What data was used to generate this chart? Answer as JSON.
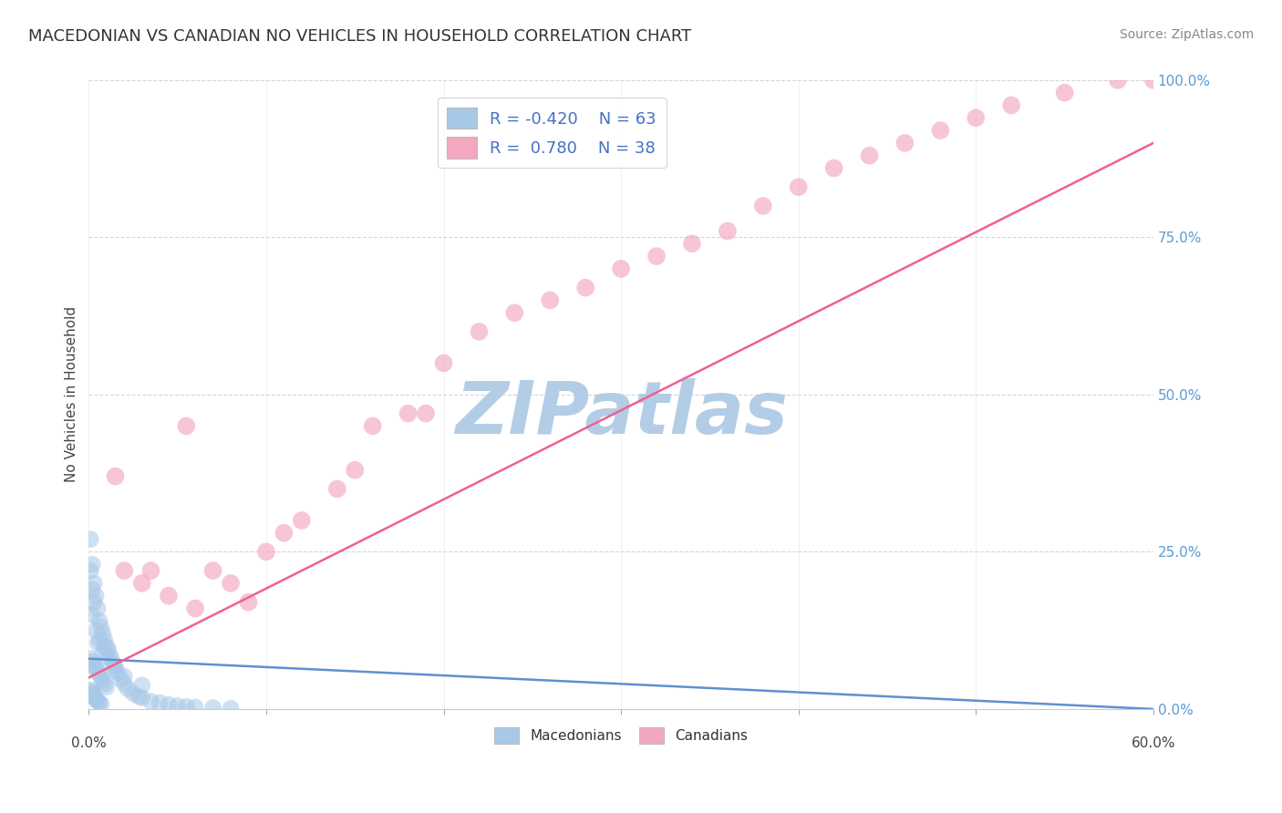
{
  "title": "MACEDONIAN VS CANADIAN NO VEHICLES IN HOUSEHOLD CORRELATION CHART",
  "source": "Source: ZipAtlas.com",
  "ylabel": "No Vehicles in Household",
  "xlim": [
    0.0,
    60.0
  ],
  "ylim": [
    0.0,
    100.0
  ],
  "yticks": [
    0.0,
    25.0,
    50.0,
    75.0,
    100.0
  ],
  "ytick_labels": [
    "0.0%",
    "25.0%",
    "50.0%",
    "75.0%",
    "100.0%"
  ],
  "legend_R_macedonian": "-0.420",
  "legend_N_macedonian": "63",
  "legend_R_canadian": "0.780",
  "legend_N_canadian": "38",
  "macedonian_color": "#a8c8e8",
  "canadian_color": "#f4a8c0",
  "macedonian_line_color": "#6090d0",
  "canadian_line_color": "#f06090",
  "watermark": "ZIPatlas",
  "watermark_color_r": 180,
  "watermark_color_g": 205,
  "watermark_color_b": 230,
  "background_color": "#ffffff",
  "macedonian_x": [
    0.1,
    0.2,
    0.3,
    0.4,
    0.5,
    0.6,
    0.7,
    0.8,
    0.9,
    1.0,
    0.1,
    0.2,
    0.3,
    0.4,
    0.5,
    0.6,
    0.7,
    0.8,
    0.9,
    1.0,
    0.1,
    0.15,
    0.2,
    0.25,
    0.3,
    0.35,
    0.4,
    0.5,
    0.6,
    0.7,
    1.1,
    1.2,
    1.3,
    1.4,
    1.5,
    1.6,
    1.8,
    2.0,
    2.2,
    2.5,
    2.8,
    3.0,
    3.5,
    4.0,
    4.5,
    5.0,
    5.5,
    6.0,
    7.0,
    8.0,
    0.1,
    0.2,
    0.3,
    0.2,
    0.4,
    0.5,
    0.8,
    1.0,
    1.5,
    2.0,
    3.0,
    0.6,
    0.9
  ],
  "macedonian_y": [
    27.0,
    23.0,
    20.0,
    18.0,
    16.0,
    14.0,
    13.0,
    12.0,
    11.0,
    10.0,
    8.0,
    7.5,
    7.0,
    6.5,
    6.0,
    5.5,
    5.0,
    4.5,
    4.0,
    3.5,
    3.0,
    2.8,
    2.5,
    2.3,
    2.0,
    1.8,
    1.5,
    1.3,
    1.0,
    0.8,
    9.5,
    8.5,
    7.8,
    7.0,
    6.2,
    5.8,
    4.8,
    4.0,
    3.2,
    2.5,
    2.0,
    1.8,
    1.2,
    1.0,
    0.7,
    0.5,
    0.4,
    0.3,
    0.2,
    0.1,
    22.0,
    19.0,
    17.0,
    15.0,
    12.5,
    10.5,
    9.0,
    8.2,
    6.8,
    5.2,
    3.8,
    11.0,
    9.8
  ],
  "canadian_x": [
    1.5,
    2.0,
    3.0,
    4.5,
    5.5,
    6.0,
    8.0,
    9.0,
    10.0,
    12.0,
    14.0,
    16.0,
    18.0,
    19.0,
    20.0,
    22.0,
    24.0,
    26.0,
    28.0,
    30.0,
    32.0,
    34.0,
    36.0,
    38.0,
    40.0,
    42.0,
    44.0,
    46.0,
    48.0,
    50.0,
    3.5,
    7.0,
    11.0,
    15.0,
    52.0,
    55.0,
    58.0,
    60.0
  ],
  "canadian_y": [
    37.0,
    22.0,
    20.0,
    18.0,
    45.0,
    16.0,
    20.0,
    17.0,
    25.0,
    30.0,
    35.0,
    45.0,
    47.0,
    47.0,
    55.0,
    60.0,
    63.0,
    65.0,
    67.0,
    70.0,
    72.0,
    74.0,
    76.0,
    80.0,
    83.0,
    86.0,
    88.0,
    90.0,
    92.0,
    94.0,
    22.0,
    22.0,
    28.0,
    38.0,
    96.0,
    98.0,
    100.0,
    100.0
  ],
  "canadian_line_x0": 0.0,
  "canadian_line_y0": 5.0,
  "canadian_line_x1": 60.0,
  "canadian_line_y1": 90.0,
  "macedonian_line_x0": 0.0,
  "macedonian_line_y0": 8.0,
  "macedonian_line_x1": 60.0,
  "macedonian_line_y1": 0.0
}
